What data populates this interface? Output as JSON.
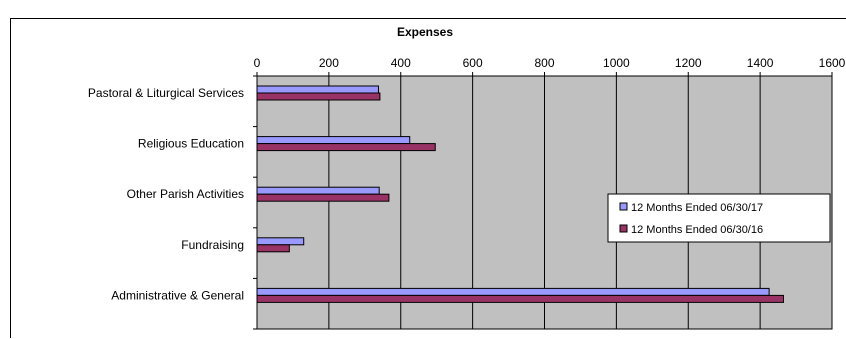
{
  "chart_data": {
    "type": "bar",
    "orientation": "horizontal",
    "title": "Expenses",
    "categories": [
      "Pastoral & Liturgical Services",
      "Religious Education",
      "Other Parish Activities",
      "Fundraising",
      "Administrative & General"
    ],
    "series": [
      {
        "name": "12 Months Ended 06/30/17",
        "color": "#9999ff",
        "values": [
          338,
          425,
          340,
          130,
          1425
        ]
      },
      {
        "name": "12 Months Ended 06/30/16",
        "color": "#993366",
        "values": [
          342,
          496,
          367,
          90,
          1465
        ]
      }
    ],
    "xlim": [
      0,
      1600
    ],
    "xticks": [
      "0",
      "200",
      "400",
      "600",
      "800",
      "1000",
      "1200",
      "1400",
      "1600"
    ],
    "grid": true,
    "plot_background": "#c0c0c0",
    "legend_position": "right"
  }
}
